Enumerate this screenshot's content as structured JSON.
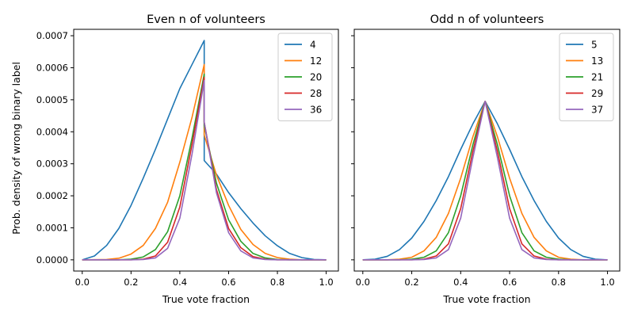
{
  "figure": {
    "ylabel": "Prob. density of wrong binary label"
  },
  "chart_data": [
    {
      "type": "line",
      "title": "Even n of volunteers",
      "xlabel": "True vote fraction",
      "ylabel": "Prob. density of wrong binary label",
      "xlim": [
        -0.035,
        1.05
      ],
      "ylim": [
        -3.5e-05,
        0.00072
      ],
      "xticks": [
        "0.0",
        "0.2",
        "0.4",
        "0.6",
        "0.8",
        "1.0"
      ],
      "yticks": [
        "0.0000",
        "0.0001",
        "0.0002",
        "0.0003",
        "0.0004",
        "0.0005",
        "0.0006",
        "0.0007"
      ],
      "show_ytick_labels": true,
      "grid": false,
      "legend_placement": "top-right",
      "series": [
        {
          "name": "4",
          "color": "#1f77b4",
          "x": [
            0,
            0.05,
            0.1,
            0.15,
            0.2,
            0.25,
            0.3,
            0.35,
            0.4,
            0.45,
            0.5,
            0.5,
            0.55,
            0.6,
            0.65,
            0.7,
            0.75,
            0.8,
            0.85,
            0.9,
            0.95,
            1.0
          ],
          "y": [
            0,
            1.2e-05,
            4.5e-05,
            9.8e-05,
            0.00017,
            0.000255,
            0.000345,
            0.00044,
            0.000535,
            0.00061,
            0.000685,
            0.00031,
            0.000268,
            0.00021,
            0.00016,
            0.000115,
            7.5e-05,
            4.4e-05,
            2e-05,
            7e-06,
            1e-06,
            0
          ]
        },
        {
          "name": "12",
          "color": "#ff7f0e",
          "x": [
            0,
            0.1,
            0.15,
            0.2,
            0.25,
            0.3,
            0.35,
            0.4,
            0.45,
            0.5,
            0.5,
            0.55,
            0.6,
            0.65,
            0.7,
            0.75,
            0.8,
            0.85,
            0.9,
            1.0
          ],
          "y": [
            0,
            1e-06,
            5e-06,
            1.8e-05,
            4.5e-05,
            9.8e-05,
            0.00018,
            0.000305,
            0.000445,
            0.00061,
            0.00039,
            0.000265,
            0.00017,
            9.5e-05,
            4.8e-05,
            2e-05,
            7e-06,
            2e-06,
            0,
            0
          ]
        },
        {
          "name": "20",
          "color": "#2ca02c",
          "x": [
            0,
            0.15,
            0.2,
            0.25,
            0.3,
            0.35,
            0.4,
            0.45,
            0.5,
            0.5,
            0.55,
            0.6,
            0.65,
            0.7,
            0.75,
            0.8,
            0.85,
            1.0
          ],
          "y": [
            0,
            0,
            2e-06,
            9e-06,
            3.2e-05,
            8.8e-05,
            0.0002,
            0.00038,
            0.00058,
            0.00042,
            0.00024,
            0.000125,
            5.8e-05,
            2e-05,
            6e-06,
            1e-06,
            0,
            0
          ]
        },
        {
          "name": "28",
          "color": "#d62728",
          "x": [
            0,
            0.2,
            0.25,
            0.3,
            0.35,
            0.4,
            0.45,
            0.5,
            0.5,
            0.55,
            0.6,
            0.65,
            0.7,
            0.75,
            0.8,
            1.0
          ],
          "y": [
            0,
            0,
            2e-06,
            1.2e-05,
            5.5e-05,
            0.000165,
            0.00036,
            0.00057,
            0.00043,
            0.00022,
            9.8e-05,
            3.8e-05,
            1e-05,
            2e-06,
            0,
            0
          ]
        },
        {
          "name": "36",
          "color": "#9467bd",
          "x": [
            0,
            0.2,
            0.25,
            0.3,
            0.35,
            0.4,
            0.45,
            0.5,
            0.5,
            0.55,
            0.6,
            0.65,
            0.7,
            0.75,
            0.8,
            1.0
          ],
          "y": [
            0,
            0,
            1e-06,
            6e-06,
            3.6e-05,
            0.00013,
            0.00033,
            0.00056,
            0.00043,
            0.00021,
            8.5e-05,
            2.8e-05,
            6e-06,
            1e-06,
            0,
            0
          ]
        }
      ]
    },
    {
      "type": "line",
      "title": "Odd n of volunteers",
      "xlabel": "True vote fraction",
      "ylabel": "",
      "xlim": [
        -0.035,
        1.05
      ],
      "ylim": [
        -3.5e-05,
        0.00072
      ],
      "xticks": [
        "0.0",
        "0.2",
        "0.4",
        "0.6",
        "0.8",
        "1.0"
      ],
      "yticks": [
        "0.0000",
        "0.0001",
        "0.0002",
        "0.0003",
        "0.0004",
        "0.0005",
        "0.0006",
        "0.0007"
      ],
      "show_ytick_labels": false,
      "grid": false,
      "legend_placement": "top-right",
      "series": [
        {
          "name": "5",
          "color": "#1f77b4",
          "x": [
            0,
            0.05,
            0.1,
            0.15,
            0.2,
            0.25,
            0.3,
            0.35,
            0.4,
            0.45,
            0.5,
            0.55,
            0.6,
            0.65,
            0.7,
            0.75,
            0.8,
            0.85,
            0.9,
            0.95,
            1.0
          ],
          "y": [
            0,
            2e-06,
            1.1e-05,
            3.2e-05,
            6.8e-05,
            0.00012,
            0.000185,
            0.00026,
            0.000345,
            0.000425,
            0.000495,
            0.000425,
            0.000345,
            0.00026,
            0.000185,
            0.00012,
            6.8e-05,
            3.2e-05,
            1.1e-05,
            2e-06,
            0
          ]
        },
        {
          "name": "13",
          "color": "#ff7f0e",
          "x": [
            0,
            0.1,
            0.15,
            0.2,
            0.25,
            0.3,
            0.35,
            0.4,
            0.45,
            0.5,
            0.55,
            0.6,
            0.65,
            0.7,
            0.75,
            0.8,
            0.85,
            0.9,
            1.0
          ],
          "y": [
            0,
            0,
            2e-06,
            8e-06,
            2.8e-05,
            7e-05,
            0.000145,
            0.000255,
            0.000385,
            0.000495,
            0.000385,
            0.000255,
            0.000145,
            7e-05,
            2.8e-05,
            8e-06,
            2e-06,
            0,
            0
          ]
        },
        {
          "name": "21",
          "color": "#2ca02c",
          "x": [
            0,
            0.15,
            0.2,
            0.25,
            0.3,
            0.35,
            0.4,
            0.45,
            0.5,
            0.55,
            0.6,
            0.65,
            0.7,
            0.75,
            0.8,
            0.85,
            1.0
          ],
          "y": [
            0,
            0,
            2e-06,
            8e-06,
            2.8e-05,
            8.5e-05,
            0.0002,
            0.00036,
            0.000495,
            0.00036,
            0.0002,
            8.5e-05,
            2.8e-05,
            8e-06,
            2e-06,
            0,
            0
          ]
        },
        {
          "name": "29",
          "color": "#d62728",
          "x": [
            0,
            0.2,
            0.25,
            0.3,
            0.35,
            0.4,
            0.45,
            0.5,
            0.55,
            0.6,
            0.65,
            0.7,
            0.75,
            0.8,
            1.0
          ],
          "y": [
            0,
            0,
            2e-06,
            1.2e-05,
            5e-05,
            0.00016,
            0.00034,
            0.000495,
            0.00034,
            0.00016,
            5e-05,
            1.2e-05,
            2e-06,
            0,
            0
          ]
        },
        {
          "name": "37",
          "color": "#9467bd",
          "x": [
            0,
            0.2,
            0.25,
            0.3,
            0.35,
            0.4,
            0.45,
            0.5,
            0.55,
            0.6,
            0.65,
            0.7,
            0.75,
            0.8,
            1.0
          ],
          "y": [
            0,
            0,
            1e-06,
            6e-06,
            3.2e-05,
            0.00013,
            0.00032,
            0.000495,
            0.00032,
            0.00013,
            3.2e-05,
            6e-06,
            1e-06,
            0,
            0
          ]
        }
      ]
    }
  ]
}
